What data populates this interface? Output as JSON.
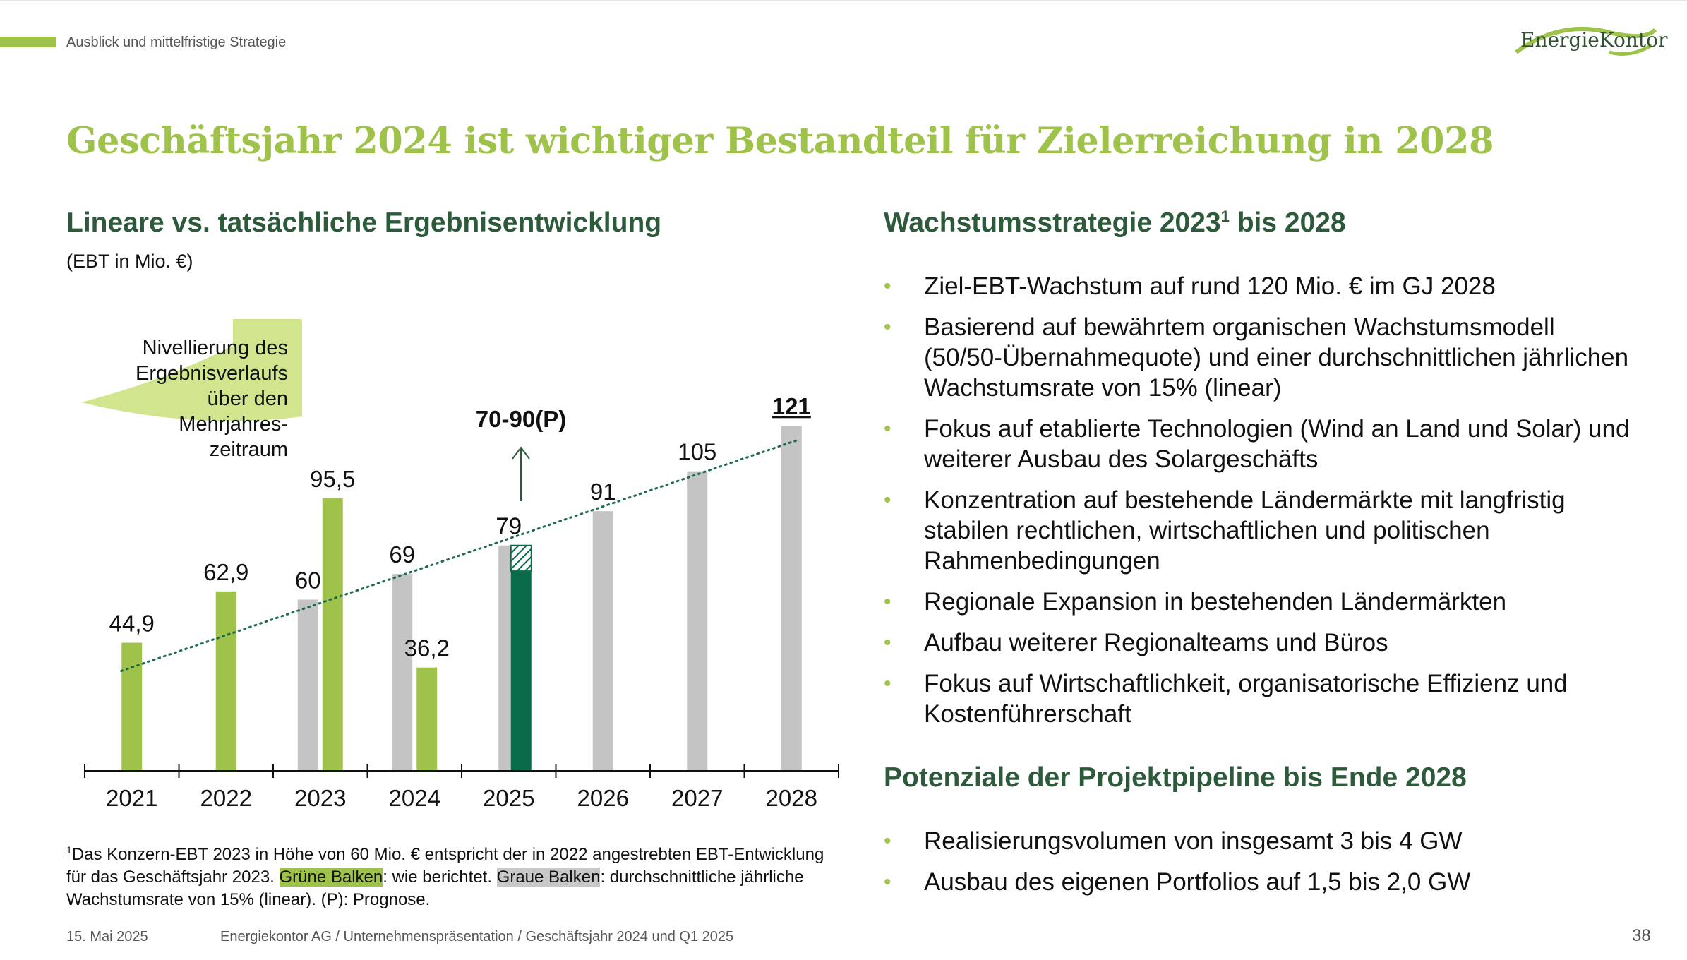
{
  "header": {
    "section_label": "Ausblick und mittelfristige Strategie",
    "logo_text": "EnergieKontor",
    "title": "Geschäftsjahr 2024 ist wichtiger Bestandteil für Zielerreichung in 2028"
  },
  "left": {
    "heading": "Lineare vs. tatsächliche Ergebnisentwicklung",
    "subheading": "(EBT in Mio. €)",
    "annotation_lines": [
      "Nivellierung  des",
      "Ergebnisverlaufs",
      "über den",
      "Mehrjahres-",
      "zeitraum"
    ],
    "forecast_label": "70-90(P)"
  },
  "chart_data": {
    "type": "bar",
    "title": "",
    "xlabel": "",
    "ylabel": "",
    "categories": [
      "2021",
      "2022",
      "2023",
      "2024",
      "2025",
      "2026",
      "2027",
      "2028"
    ],
    "series": [
      {
        "name": "Grüne Balken",
        "values": [
          44.9,
          62.9,
          95.5,
          36.2,
          null,
          null,
          null,
          null
        ],
        "labels": [
          "44,9",
          "62,9",
          "95,5",
          "36,2",
          "",
          "",
          "",
          ""
        ],
        "color": "#9ec24a"
      },
      {
        "name": "Graue Balken",
        "values": [
          null,
          null,
          60,
          69,
          79,
          91,
          105,
          121
        ],
        "labels": [
          "",
          "",
          "60",
          "69",
          "79",
          "91",
          "105",
          "121"
        ],
        "color": "#c4c4c4"
      }
    ],
    "forecast_2025": {
      "range": [
        70,
        90
      ],
      "range_label": "70-90(P)",
      "solid_value": 70,
      "hatched_top": 79,
      "color": "#0a6b4a"
    },
    "trend_line": {
      "from": {
        "x": "2021",
        "y": 44.9
      },
      "to": {
        "x": "2028",
        "y": 121
      },
      "style": "dotted",
      "color": "#1f6b4a"
    },
    "ylim": [
      0,
      121
    ],
    "grid": false,
    "legend": "none"
  },
  "right": {
    "heading_main": "Wachstumsstrategie 2023",
    "heading_sup": "1",
    "heading_tail": " bis 2028",
    "bullets": [
      "Ziel-EBT-Wachstum auf rund 120 Mio. € im GJ 2028",
      "Basierend auf bewährtem organischen Wachstumsmodell (50/50-Übernahmequote) und einer durchschnittlichen jährlichen Wachstumsrate von 15% (linear)",
      "Fokus auf etablierte Technologien (Wind an Land und Solar) und weiterer Ausbau des Solargeschäfts",
      "Konzentration auf bestehende Ländermärkte mit langfristig stabilen rechtlichen, wirtschaftlichen und politischen Rahmenbedingungen",
      "Regionale Expansion in bestehenden Ländermärkten",
      "Aufbau weiterer Regionalteams und Büros",
      "Fokus auf Wirtschaftlichkeit, organisatorische Effizienz und Kostenführerschaft"
    ],
    "heading2": "Potenziale der Projektpipeline bis Ende 2028",
    "bullets2": [
      "Realisierungsvolumen von insgesamt 3 bis 4 GW",
      "Ausbau des eigenen Portfolios auf 1,5 bis 2,0 GW"
    ],
    "bullet_symbol": "•"
  },
  "footnote": {
    "marker": "1",
    "part1": "Das Konzern-EBT 2023 in Höhe von 60 Mio. € entspricht der in 2022 angestrebten EBT-Entwicklung für das Geschäftsjahr 2023. ",
    "green_label": "Grüne Balken",
    "part2": ": wie berichtet. ",
    "grey_label": "Graue Balken",
    "part3": ": durchschnittliche jährliche Wachstumsrate von 15% (linear).  (P): Prognose."
  },
  "footer": {
    "date": "15. Mai 2025",
    "company": "Energiekontor AG / Unternehmenspräsentation / Geschäftsjahr 2024 und Q1 2025",
    "page": "38"
  }
}
